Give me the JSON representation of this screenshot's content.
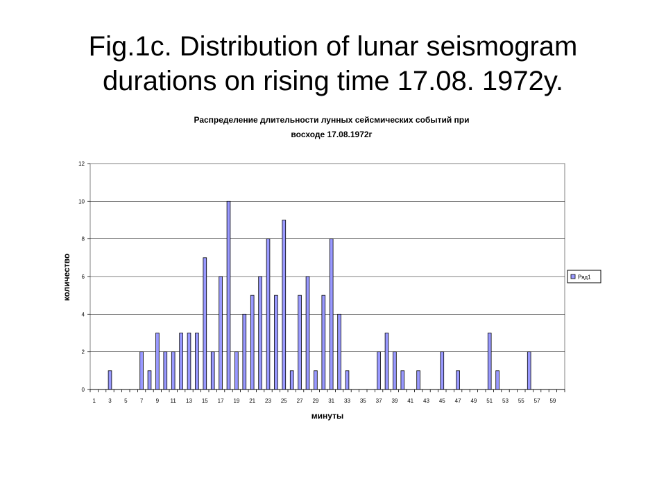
{
  "slide": {
    "title": "Fig.1c. Distribution of lunar seismogram durations on rising time 17.08. 1972y."
  },
  "chart_data": {
    "type": "bar",
    "title_line1": "Распределение длительности лунных сейсмических событий при",
    "title_line2": "восходе 17.08.1972г",
    "xlabel": "минуты",
    "ylabel": "количество",
    "ylim": [
      0,
      12
    ],
    "yticks": [
      "0",
      "2",
      "4",
      "6",
      "8",
      "10",
      "12"
    ],
    "grid": "horizontal",
    "legend_position": "right",
    "bar_color": "#9999ff",
    "categories": [
      "1",
      "2",
      "3",
      "4",
      "5",
      "6",
      "7",
      "8",
      "9",
      "10",
      "11",
      "12",
      "13",
      "14",
      "15",
      "16",
      "17",
      "18",
      "19",
      "20",
      "21",
      "22",
      "23",
      "24",
      "25",
      "26",
      "27",
      "28",
      "29",
      "30",
      "31",
      "32",
      "33",
      "34",
      "35",
      "36",
      "37",
      "38",
      "39",
      "40",
      "41",
      "42",
      "43",
      "44",
      "45",
      "46",
      "47",
      "48",
      "49",
      "50",
      "51",
      "52",
      "53",
      "54",
      "55",
      "56",
      "57",
      "58",
      "59",
      "60"
    ],
    "x_tick_labels": [
      "1",
      "3",
      "5",
      "7",
      "9",
      "11",
      "13",
      "15",
      "17",
      "19",
      "21",
      "23",
      "25",
      "27",
      "29",
      "31",
      "33",
      "35",
      "37",
      "39",
      "41",
      "43",
      "45",
      "47",
      "49",
      "51",
      "53",
      "55",
      "57",
      "59"
    ],
    "series": [
      {
        "name": "Ряд1",
        "values": [
          0,
          0,
          1,
          0,
          0,
          0,
          2,
          1,
          3,
          2,
          2,
          3,
          3,
          3,
          7,
          2,
          6,
          10,
          2,
          4,
          5,
          6,
          8,
          5,
          9,
          1,
          5,
          6,
          1,
          5,
          8,
          4,
          1,
          0,
          0,
          0,
          2,
          3,
          2,
          1,
          0,
          1,
          0,
          0,
          2,
          0,
          1,
          0,
          0,
          0,
          3,
          1,
          0,
          0,
          0,
          2,
          0,
          0,
          0,
          0
        ]
      }
    ]
  }
}
